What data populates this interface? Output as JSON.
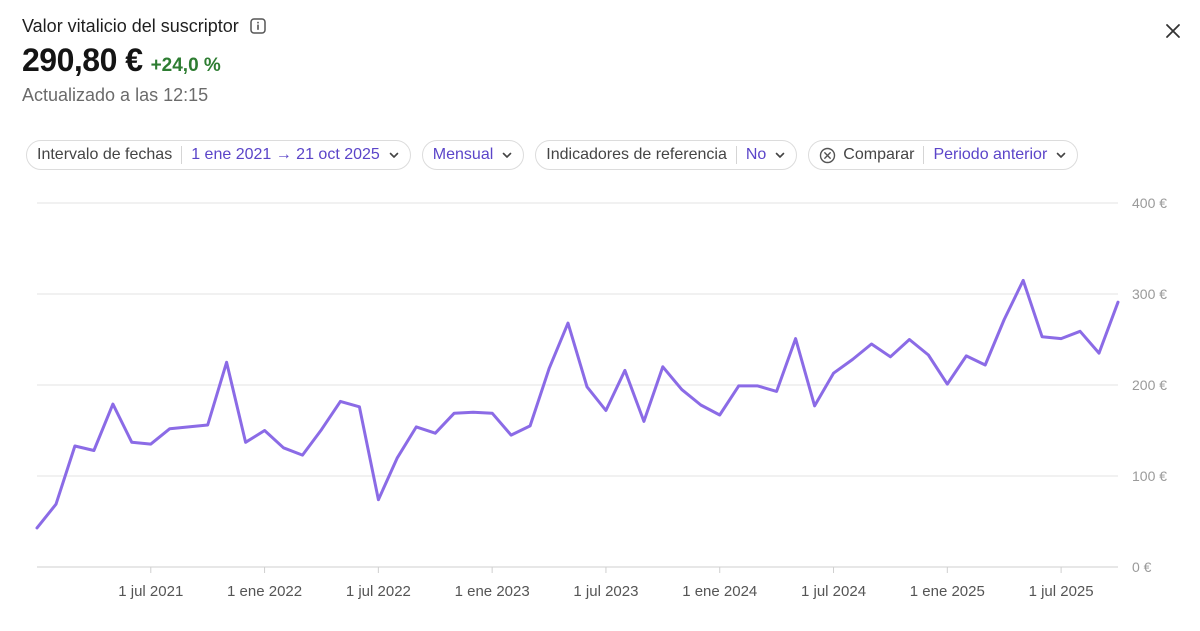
{
  "header": {
    "title": "Valor vitalicio del suscriptor",
    "value": "290,80 €",
    "change": "+24,0 %",
    "updated": "Actualizado a las 12:15",
    "icons": [
      "info-icon",
      "close-icon"
    ]
  },
  "filters": {
    "date_range_label": "Intervalo de fechas",
    "date_range_value": "1 ene 2021 → 21 oct 2025",
    "interval_value": "Mensual",
    "benchmarks_label": "Indicadores de referencia",
    "benchmarks_value": "No",
    "compare_label": "Comparar",
    "compare_value": "Periodo anterior"
  },
  "colors": {
    "accent": "#5b45c9",
    "line": "#8b6be6",
    "positive": "#2e7d32",
    "grid": "#e3e3e3"
  },
  "chart_data": {
    "type": "line",
    "title": "",
    "xlabel": "",
    "ylabel": "",
    "ylim": [
      0,
      400
    ],
    "y_ticks": [
      {
        "value": 400,
        "label": "400 €"
      },
      {
        "value": 300,
        "label": "300 €"
      },
      {
        "value": 200,
        "label": "200 €"
      },
      {
        "value": 100,
        "label": "100 €"
      },
      {
        "value": 0,
        "label": "0 €"
      }
    ],
    "x_start": "2021-01",
    "x_end": "2025-10",
    "x_ticks": [
      {
        "month": "2021-07",
        "label": "1 jul 2021"
      },
      {
        "month": "2022-01",
        "label": "1 ene 2022"
      },
      {
        "month": "2022-07",
        "label": "1 jul 2022"
      },
      {
        "month": "2023-01",
        "label": "1 ene 2023"
      },
      {
        "month": "2023-07",
        "label": "1 jul 2023"
      },
      {
        "month": "2024-01",
        "label": "1 ene 2024"
      },
      {
        "month": "2024-07",
        "label": "1 jul 2024"
      },
      {
        "month": "2025-01",
        "label": "1 ene 2025"
      },
      {
        "month": "2025-07",
        "label": "1 jul 2025"
      }
    ],
    "grid": true,
    "series": [
      {
        "x": [
          "2021-01",
          "2021-02",
          "2021-03",
          "2021-04",
          "2021-05",
          "2021-06",
          "2021-07",
          "2021-08",
          "2021-09",
          "2021-10",
          "2021-11",
          "2021-12",
          "2022-01",
          "2022-02",
          "2022-03",
          "2022-04",
          "2022-05",
          "2022-06",
          "2022-07",
          "2022-08",
          "2022-09",
          "2022-10",
          "2022-11",
          "2022-12",
          "2023-01",
          "2023-02",
          "2023-03",
          "2023-04",
          "2023-05",
          "2023-06",
          "2023-07",
          "2023-08",
          "2023-09",
          "2023-10",
          "2023-11",
          "2023-12",
          "2024-01",
          "2024-02",
          "2024-03",
          "2024-04",
          "2024-05",
          "2024-06",
          "2024-07",
          "2024-08",
          "2024-09",
          "2024-10",
          "2024-11",
          "2024-12",
          "2025-01",
          "2025-02",
          "2025-03",
          "2025-04",
          "2025-05",
          "2025-06",
          "2025-07",
          "2025-08",
          "2025-09",
          "2025-10"
        ],
        "values": [
          43,
          69,
          133,
          128,
          179,
          137,
          135,
          152,
          154,
          156,
          225,
          137,
          150,
          131,
          123,
          151,
          182,
          176,
          74,
          120,
          154,
          147,
          169,
          170,
          169,
          145,
          155,
          218,
          268,
          198,
          172,
          216,
          160,
          220,
          195,
          178,
          167,
          199,
          199,
          193,
          251,
          177,
          213,
          228,
          245,
          231,
          250,
          233,
          201,
          232,
          222,
          272,
          315,
          253,
          251,
          259,
          235,
          291
        ]
      }
    ]
  }
}
